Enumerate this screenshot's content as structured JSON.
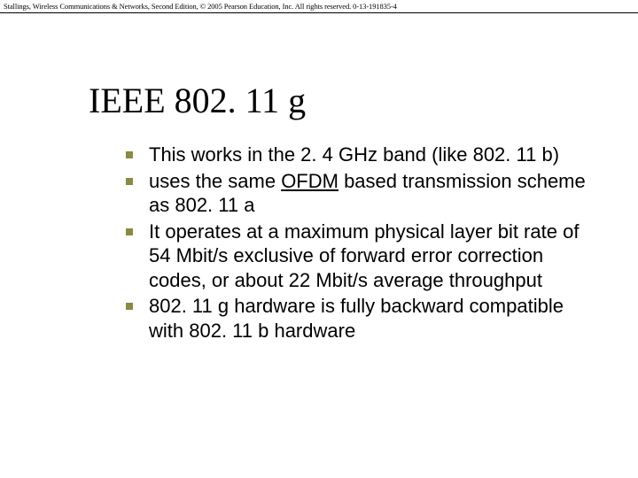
{
  "header": {
    "text": "Stallings, Wireless Communications & Networks, Second Edition, © 2005 Pearson Education, Inc. All rights reserved. 0-13-191835-4"
  },
  "slide": {
    "title": "IEEE 802. 11 g",
    "bullet_marker_color": "#8a8a44",
    "bullets": [
      {
        "pre": "This works in the 2. 4 GHz band (like 802. 11 b)",
        "link": "",
        "post": ""
      },
      {
        "pre": "uses the same ",
        "link": "OFDM",
        "post": " based transmission scheme as 802. 11 a"
      },
      {
        "pre": "It operates at a maximum physical layer bit rate of 54 Mbit/s exclusive of forward error correction codes, or about 22 Mbit/s average throughput",
        "link": "",
        "post": ""
      },
      {
        "pre": "802. 11 g hardware is fully backward compatible with 802. 11 b hardware",
        "link": "",
        "post": ""
      }
    ]
  },
  "style": {
    "background_color": "#ffffff",
    "title_fontsize": 40,
    "body_fontsize": 22,
    "header_fontsize": 8.5,
    "text_color": "#000000"
  }
}
